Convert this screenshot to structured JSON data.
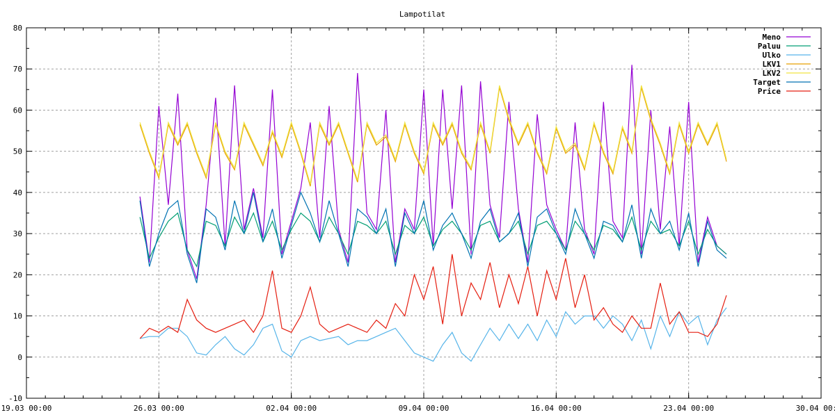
{
  "chart_data": {
    "type": "line",
    "title": "Lampotilat",
    "xlabel": "",
    "ylabel": "",
    "ylim": [
      -10,
      80
    ],
    "yticks": [
      "-10",
      "0",
      "10",
      "20",
      "30",
      "40",
      "50",
      "60",
      "70",
      "80"
    ],
    "xlim": [
      "19.03 00:00",
      "30.04 00:00"
    ],
    "xticks": [
      "19.03 00:00",
      "26.03 00:00",
      "02.04 00:00",
      "09.04 00:00",
      "16.04 00:00",
      "23.04 00:00",
      "30.04 00:00"
    ],
    "grid": true,
    "legend_placement": "top-right",
    "x": [
      "25.03 00:00",
      "25.03 12:00",
      "26.03 00:00",
      "26.03 12:00",
      "27.03 00:00",
      "27.03 12:00",
      "28.03 00:00",
      "28.03 12:00",
      "29.03 00:00",
      "29.03 12:00",
      "30.03 00:00",
      "30.03 12:00",
      "31.03 00:00",
      "31.03 12:00",
      "01.04 00:00",
      "01.04 12:00",
      "02.04 00:00",
      "02.04 12:00",
      "03.04 00:00",
      "03.04 12:00",
      "04.04 00:00",
      "04.04 12:00",
      "05.04 00:00",
      "05.04 12:00",
      "06.04 00:00",
      "06.04 12:00",
      "07.04 00:00",
      "07.04 12:00",
      "08.04 00:00",
      "08.04 12:00",
      "09.04 00:00",
      "09.04 12:00",
      "10.04 00:00",
      "10.04 12:00",
      "11.04 00:00",
      "11.04 12:00",
      "12.04 00:00",
      "12.04 12:00",
      "13.04 00:00",
      "13.04 12:00",
      "14.04 00:00",
      "14.04 12:00",
      "15.04 00:00",
      "15.04 12:00",
      "16.04 00:00",
      "16.04 12:00",
      "17.04 00:00",
      "17.04 12:00",
      "18.04 00:00",
      "18.04 12:00",
      "19.04 00:00",
      "19.04 12:00",
      "20.04 00:00",
      "20.04 12:00",
      "21.04 00:00",
      "21.04 12:00",
      "22.04 00:00",
      "22.04 12:00",
      "23.04 00:00",
      "23.04 12:00",
      "24.04 00:00",
      "24.04 12:00",
      "25.04 00:00"
    ],
    "series": [
      {
        "name": "Meno",
        "color": "#9400d3",
        "values": [
          39,
          23,
          61,
          37,
          64,
          26,
          19,
          37,
          63,
          27,
          66,
          31,
          41,
          29,
          65,
          25,
          33,
          41,
          57,
          29,
          61,
          31,
          23,
          69,
          35,
          31,
          60,
          23,
          36,
          31,
          65,
          27,
          65,
          36,
          66,
          25,
          67,
          37,
          29,
          62,
          36,
          23,
          59,
          37,
          31,
          26,
          57,
          31,
          25,
          62,
          33,
          29,
          71,
          25,
          60,
          31,
          56,
          27,
          62,
          23,
          34,
          27,
          25
        ]
      },
      {
        "name": "Paluu",
        "color": "#009e73",
        "values": [
          34,
          24,
          29,
          33,
          35,
          26,
          22,
          33,
          32,
          27,
          34,
          30,
          35,
          28,
          33,
          26,
          31,
          35,
          33,
          28,
          34,
          30,
          25,
          33,
          32,
          30,
          33,
          25,
          32,
          30,
          34,
          27,
          31,
          33,
          30,
          26,
          32,
          33,
          28,
          30,
          33,
          25,
          32,
          33,
          30,
          26,
          33,
          30,
          26,
          32,
          31,
          28,
          34,
          26,
          33,
          30,
          31,
          27,
          33,
          25,
          31,
          27,
          25
        ]
      },
      {
        "name": "Ulko",
        "color": "#56b4e9",
        "values": [
          4.5,
          5,
          5,
          7,
          7,
          5,
          1,
          0.5,
          3,
          5,
          2,
          0.5,
          3,
          7,
          8,
          1.5,
          0,
          4,
          5,
          4,
          4.5,
          5,
          3,
          4,
          4,
          5,
          6,
          7,
          4,
          1,
          0,
          -1,
          3,
          6,
          1,
          -1,
          3,
          7,
          4,
          8,
          4.5,
          8,
          4,
          9,
          5,
          11,
          8,
          10,
          10,
          7,
          10,
          8,
          4,
          9,
          2,
          10,
          5,
          11,
          8,
          10,
          3,
          9,
          12
        ]
      },
      {
        "name": "LKV1",
        "color": "#e69f00",
        "values": [
          56.5,
          49.5,
          43.5,
          56.5,
          51.5,
          56.5,
          49.5,
          43.5,
          56.5,
          49.5,
          45.5,
          56.5,
          51.5,
          46.5,
          54.5,
          48.5,
          56.5,
          49.5,
          41.5,
          56.5,
          51.5,
          56.5,
          49.5,
          42.5,
          56.5,
          51.5,
          53.5,
          47.5,
          56.5,
          49.5,
          44.5,
          56.5,
          51.5,
          56.5,
          49.5,
          45.5,
          56.5,
          49.5,
          65.5,
          57.5,
          51.5,
          56.5,
          49.5,
          44.5,
          55.5,
          49.5,
          51.5,
          45.5,
          56.5,
          49.5,
          44.5,
          55.5,
          49.5,
          65.5,
          57.5,
          51.5,
          44.5,
          56.5,
          49.5,
          56.5,
          51.5,
          56.5,
          47.5
        ]
      },
      {
        "name": "LKV2",
        "color": "#f0e442",
        "values": [
          57,
          50,
          44,
          57,
          52,
          57,
          50,
          44,
          57,
          50,
          46,
          57,
          52,
          47,
          55,
          49,
          57,
          50,
          42,
          57,
          52,
          57,
          50,
          43,
          57,
          52,
          54,
          48,
          57,
          50,
          45,
          57,
          52,
          57,
          50,
          46,
          57,
          50,
          66,
          58,
          52,
          57,
          50,
          45,
          56,
          50,
          52,
          46,
          57,
          50,
          45,
          56,
          50,
          66,
          58,
          52,
          45,
          57,
          50,
          57,
          52,
          57,
          48
        ]
      },
      {
        "name": "Target",
        "color": "#0072b2",
        "values": [
          38,
          22,
          30,
          36,
          38,
          25,
          18,
          36,
          34,
          26,
          38,
          30,
          40,
          28,
          36,
          24,
          32,
          40,
          35,
          28,
          38,
          30,
          22,
          36,
          34,
          30,
          36,
          22,
          35,
          30,
          38,
          26,
          32,
          35,
          30,
          24,
          33,
          36,
          28,
          30,
          35,
          22,
          34,
          36,
          30,
          25,
          36,
          30,
          24,
          33,
          32,
          28,
          37,
          24,
          36,
          30,
          33,
          26,
          35,
          22,
          33,
          26,
          24
        ]
      },
      {
        "name": "Price",
        "color": "#e51e10",
        "values": [
          4.5,
          7,
          6,
          7.5,
          6,
          14,
          9,
          7,
          6,
          7,
          8,
          9,
          6,
          10,
          21,
          7,
          6,
          10,
          17,
          8,
          6,
          7,
          8,
          7,
          6,
          9,
          7,
          13,
          10,
          20,
          14,
          22,
          8,
          25,
          10,
          18,
          14,
          23,
          12,
          20,
          13,
          22,
          10,
          21,
          14,
          24,
          12,
          20,
          9,
          12,
          8,
          6,
          10,
          7,
          7,
          18,
          8,
          11,
          6,
          6,
          5,
          8,
          15
        ]
      }
    ]
  }
}
